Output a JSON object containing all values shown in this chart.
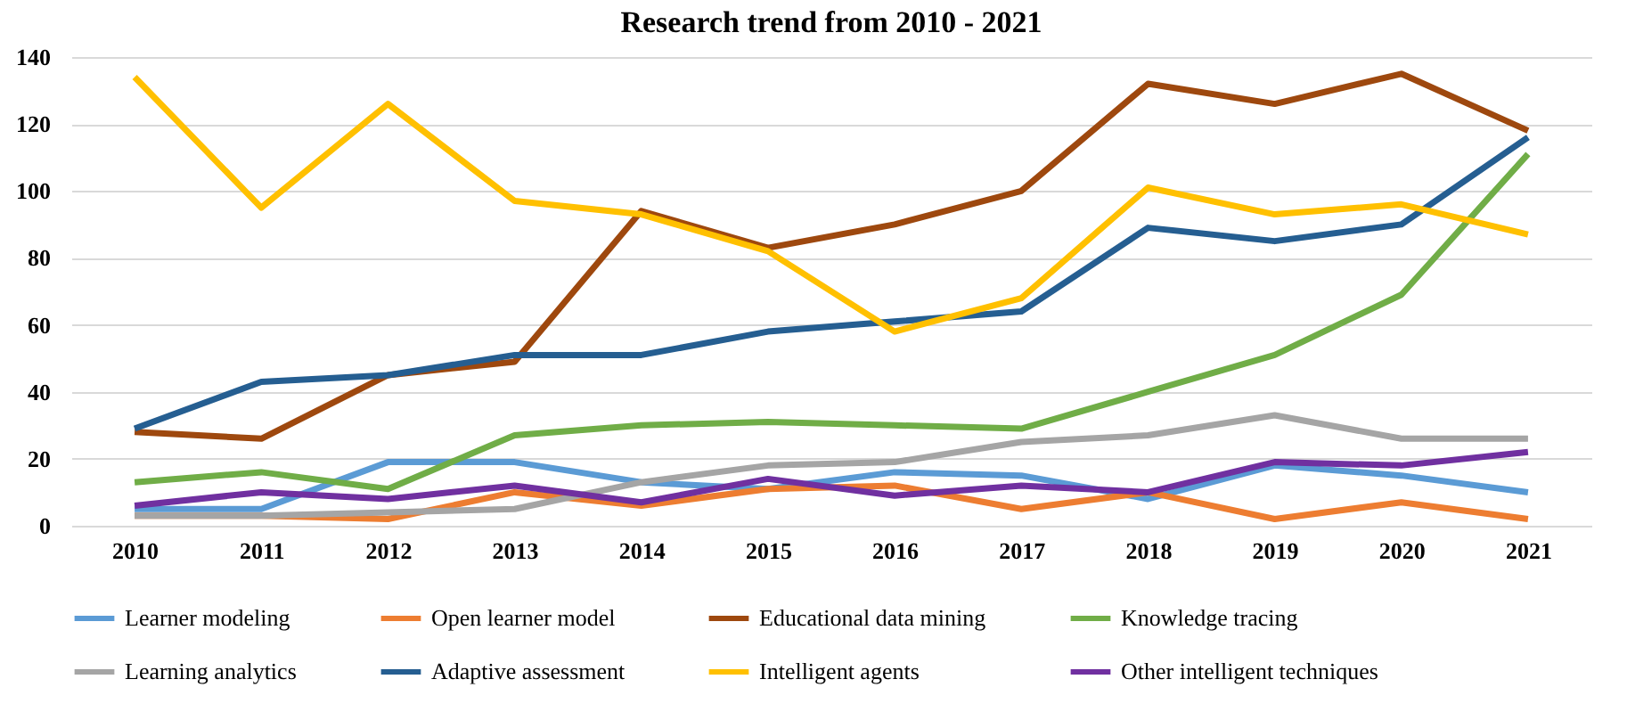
{
  "chart_data": {
    "type": "line",
    "title": "Research trend from 2010 - 2021",
    "categories": [
      "2010",
      "2011",
      "2012",
      "2013",
      "2014",
      "2015",
      "2016",
      "2017",
      "2018",
      "2019",
      "2020",
      "2021"
    ],
    "series": [
      {
        "name": "Learner modeling",
        "color": "#5b9bd5",
        "values": [
          5,
          5,
          19,
          19,
          13,
          11,
          16,
          15,
          8,
          18,
          15,
          10
        ]
      },
      {
        "name": "Open learner model",
        "color": "#ed7d31",
        "values": [
          3,
          3,
          2,
          10,
          6,
          11,
          12,
          5,
          10,
          2,
          7,
          2
        ]
      },
      {
        "name": "Educational data mining",
        "color": "#9e480e",
        "values": [
          28,
          26,
          45,
          49,
          94,
          83,
          90,
          100,
          132,
          126,
          135,
          118
        ]
      },
      {
        "name": "Knowledge tracing",
        "color": "#70ad47",
        "values": [
          13,
          16,
          11,
          27,
          30,
          31,
          30,
          29,
          40,
          51,
          69,
          111
        ]
      },
      {
        "name": "Learning analytics",
        "color": "#a5a5a5",
        "values": [
          3,
          3,
          4,
          5,
          13,
          18,
          19,
          25,
          27,
          33,
          26,
          26
        ]
      },
      {
        "name": "Adaptive assessment",
        "color": "#255e91",
        "values": [
          29,
          43,
          45,
          51,
          51,
          58,
          61,
          64,
          89,
          85,
          90,
          116
        ]
      },
      {
        "name": "Intelligent agents",
        "color": "#ffc000",
        "values": [
          134,
          95,
          126,
          97,
          93,
          82,
          58,
          68,
          101,
          93,
          96,
          87
        ]
      },
      {
        "name": "Other intelligent techniques",
        "color": "#7030a0",
        "values": [
          6,
          10,
          8,
          12,
          7,
          14,
          9,
          12,
          10,
          19,
          18,
          22
        ]
      }
    ],
    "ylim": [
      0,
      140
    ],
    "yticks": [
      0,
      20,
      40,
      60,
      80,
      100,
      120,
      140
    ],
    "grid": "y",
    "legend": "bottom",
    "marker": "none",
    "line_style": "solid"
  }
}
